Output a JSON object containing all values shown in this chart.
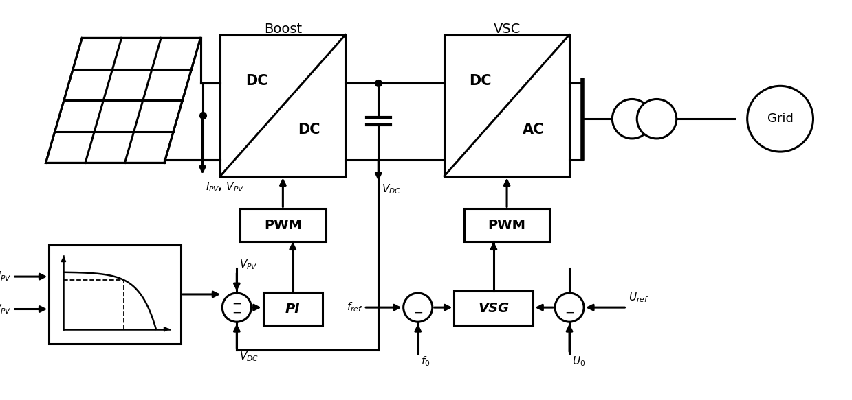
{
  "bg_color": "#ffffff",
  "boost_label": "Boost",
  "vsc_label": "VSC",
  "pwm1_label": "PWM",
  "pwm2_label": "PWM",
  "pi_label": "PI",
  "vsg_label": "VSG",
  "grid_label": "Grid",
  "ipv_vpv_label": "$\\mathit{I}_{PV}$, $\\mathit{V}_{PV}$",
  "vdc_label_cap": "$\\mathit{V}_{DC}$",
  "vdc_label_bot": "$\\mathit{V}_{DC}$",
  "vpv_label": "$\\mathit{V}_{PV}$",
  "ipv_input": "$\\mathit{I}_{PV}$",
  "vpv_input": "$\\mathit{V}_{PV}$",
  "fref_label": "$\\mathit{f}_{ref}$",
  "f0_label": "$\\mathit{f}_{0}$",
  "uref_label": "$\\mathit{U}_{ref}$",
  "u0_label": "$\\mathit{U}_{0}$"
}
